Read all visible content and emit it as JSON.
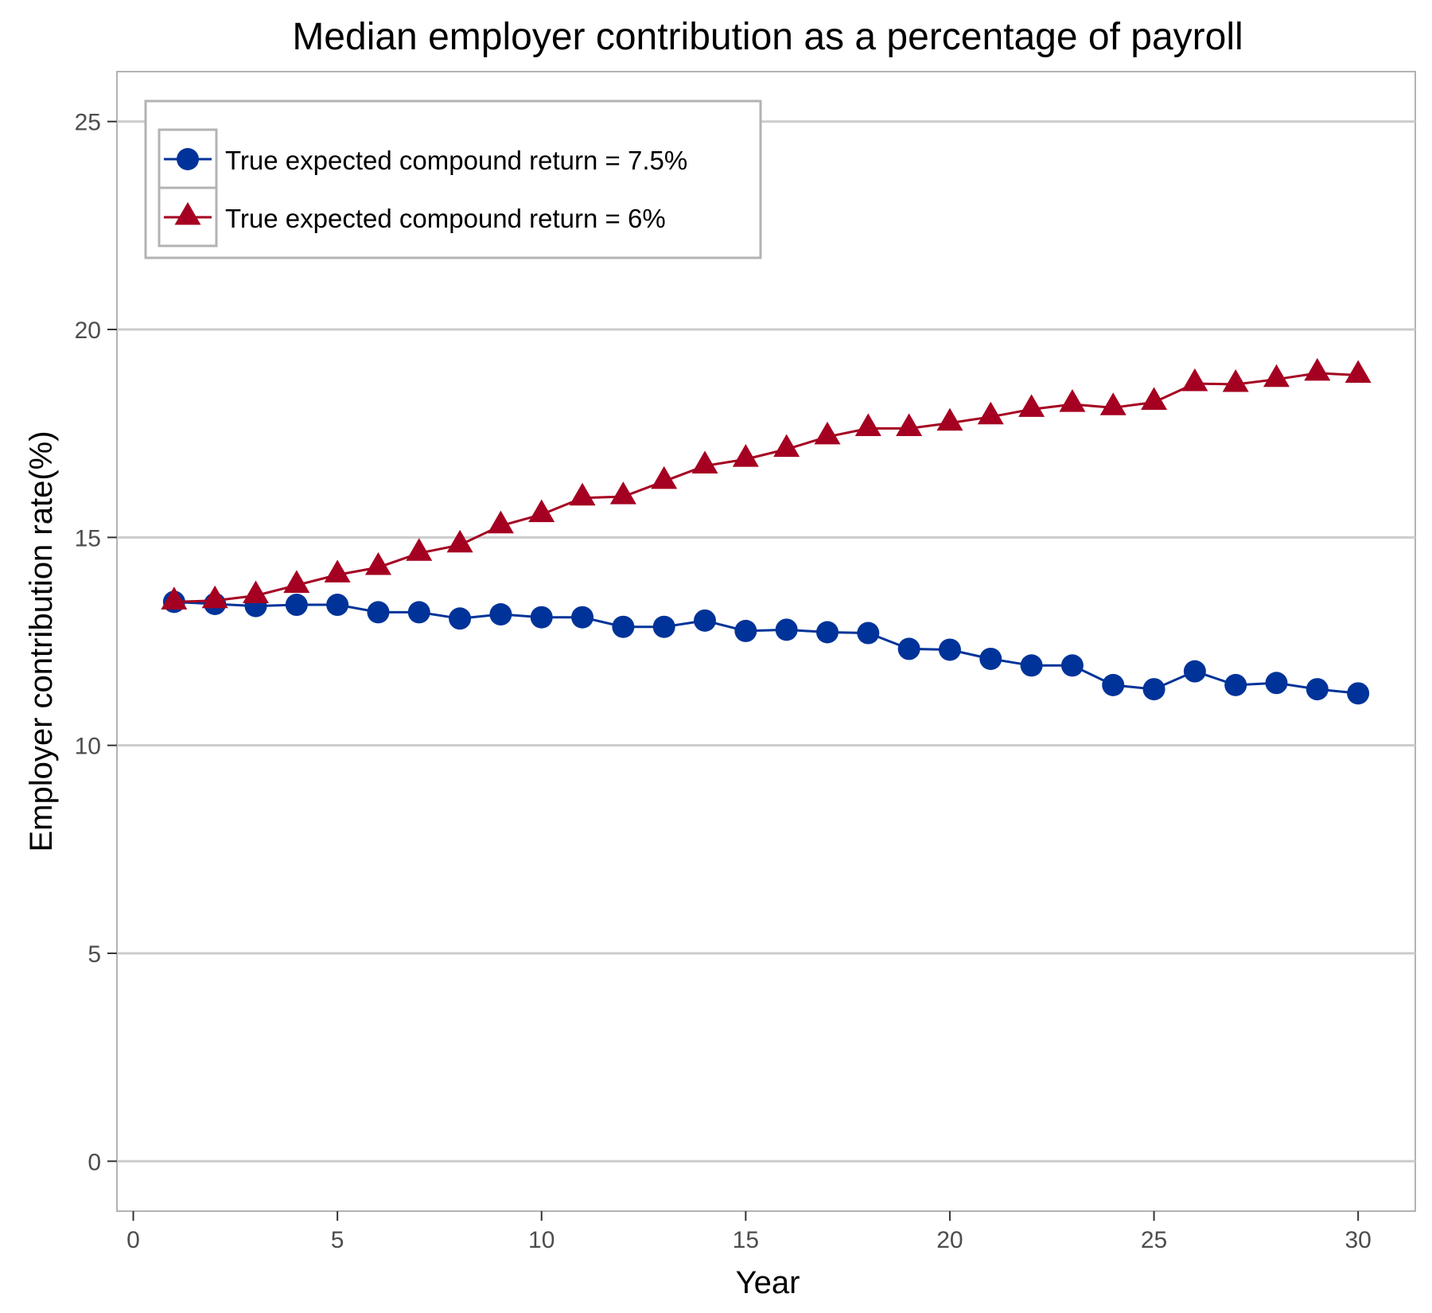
{
  "chart_data": {
    "type": "line",
    "title": "Median employer contribution as a percentage of payroll",
    "xlabel": "Year",
    "ylabel": "Employer contribution rate(%)",
    "xlim": [
      -0.4,
      31.4
    ],
    "ylim": [
      -1.2,
      26.2
    ],
    "x_ticks": [
      0,
      5,
      10,
      15,
      20,
      25,
      30
    ],
    "y_ticks": [
      0,
      5,
      10,
      15,
      20,
      25
    ],
    "grid": {
      "major_y": true,
      "major_x": false
    },
    "legend_position": "top-left",
    "x": [
      1,
      2,
      3,
      4,
      5,
      6,
      7,
      8,
      9,
      10,
      11,
      12,
      13,
      14,
      15,
      16,
      17,
      18,
      19,
      20,
      21,
      22,
      23,
      24,
      25,
      26,
      27,
      28,
      29,
      30
    ],
    "series": [
      {
        "name": "True expected compound return = 7.5%",
        "color": "#003399",
        "marker": "circle",
        "values": [
          13.45,
          13.4,
          13.35,
          13.38,
          13.38,
          13.2,
          13.2,
          13.05,
          13.15,
          13.08,
          13.08,
          12.85,
          12.85,
          13.0,
          12.75,
          12.78,
          12.72,
          12.7,
          12.32,
          12.3,
          12.08,
          11.92,
          11.92,
          11.45,
          11.35,
          11.78,
          11.45,
          11.5,
          11.35,
          11.25
        ]
      },
      {
        "name": "True expected compound return = 6%",
        "color": "#a50021",
        "marker": "triangle",
        "values": [
          13.45,
          13.48,
          13.6,
          13.85,
          14.1,
          14.28,
          14.62,
          14.82,
          15.28,
          15.55,
          15.95,
          15.98,
          16.35,
          16.72,
          16.88,
          17.12,
          17.42,
          17.62,
          17.62,
          17.75,
          17.9,
          18.08,
          18.2,
          18.12,
          18.25,
          18.7,
          18.68,
          18.8,
          18.95,
          18.9
        ]
      }
    ]
  }
}
